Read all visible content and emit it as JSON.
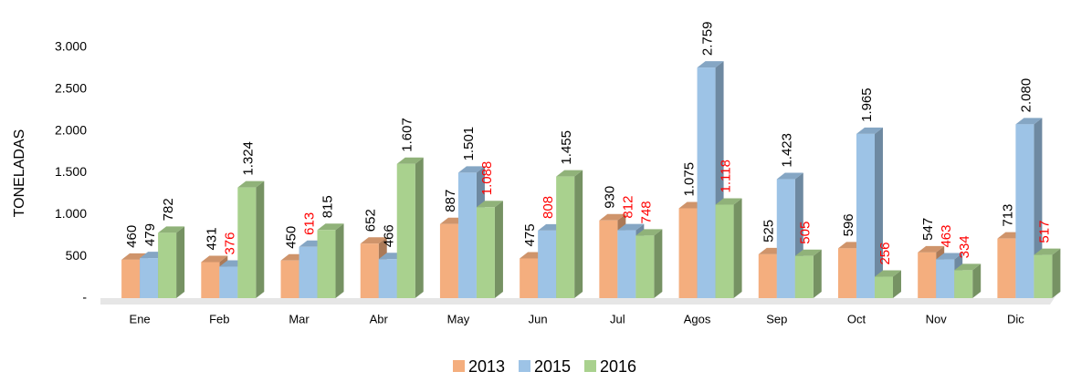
{
  "chart_data": {
    "type": "bar3d",
    "y_axis_label": "TONELADAS",
    "categories": [
      "Ene",
      "Feb",
      "Mar",
      "Abr",
      "May",
      "Jun",
      "Jul",
      "Agos",
      "Sep",
      "Oct",
      "Nov",
      "Dic"
    ],
    "series": [
      {
        "name": "2013",
        "color": "#f4ae7e",
        "values": [
          460,
          431,
          450,
          652,
          887,
          475,
          930,
          1075,
          525,
          596,
          547,
          713
        ],
        "value_labels": [
          "460",
          "431",
          "450",
          "652",
          "887",
          "475",
          "930",
          "1.075",
          "525",
          "596",
          "547",
          "713"
        ],
        "value_label_colors": [
          "#000000",
          "#000000",
          "#000000",
          "#000000",
          "#000000",
          "#000000",
          "#000000",
          "#000000",
          "#000000",
          "#000000",
          "#000000",
          "#000000"
        ]
      },
      {
        "name": "2015",
        "color": "#9dc3e6",
        "values": [
          479,
          376,
          613,
          466,
          1501,
          808,
          812,
          2759,
          1423,
          1965,
          463,
          2080
        ],
        "value_labels": [
          "479",
          "376",
          "613",
          "466",
          "1.501",
          "808",
          "812",
          "2.759",
          "1.423",
          "1.965",
          "463",
          "2.080"
        ],
        "value_label_colors": [
          "#000000",
          "#ff0000",
          "#ff0000",
          "#000000",
          "#000000",
          "#ff0000",
          "#ff0000",
          "#000000",
          "#000000",
          "#000000",
          "#ff0000",
          "#000000"
        ]
      },
      {
        "name": "2016",
        "color": "#a9d18e",
        "values": [
          782,
          1324,
          815,
          1607,
          1088,
          1455,
          748,
          1118,
          505,
          256,
          334,
          517
        ],
        "value_labels": [
          "782",
          "1.324",
          "815",
          "1.607",
          "1.088",
          "1.455",
          "748",
          "1.118",
          "505",
          "256",
          "334",
          "517"
        ],
        "value_label_colors": [
          "#000000",
          "#000000",
          "#000000",
          "#000000",
          "#ff0000",
          "#000000",
          "#ff0000",
          "#ff0000",
          "#ff0000",
          "#ff0000",
          "#ff0000",
          "#ff0000"
        ]
      }
    ],
    "ylim": [
      0,
      3000
    ],
    "yticks": [
      {
        "value": 0,
        "label": "-"
      },
      500,
      {
        "value": 1000,
        "label": "1.000"
      },
      {
        "value": 1500,
        "label": "1.500"
      },
      {
        "value": 2000,
        "label": "2.000"
      },
      {
        "value": 2500,
        "label": "2.500"
      },
      {
        "value": 3000,
        "label": "3.000"
      }
    ],
    "legend": "bottom",
    "grid": false
  }
}
